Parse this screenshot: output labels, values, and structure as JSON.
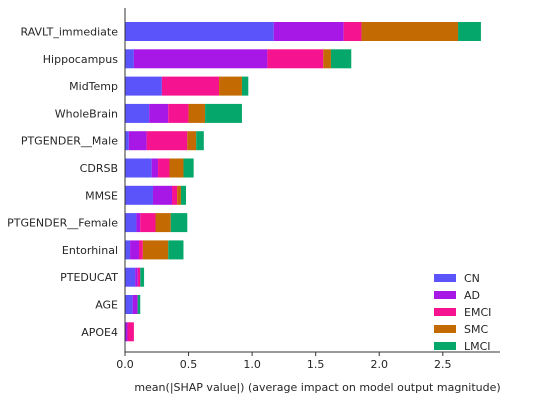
{
  "chart_data": {
    "type": "bar",
    "orientation": "horizontal",
    "stacked": true,
    "categories": [
      "RAVLT_immediate",
      "Hippocampus",
      "MidTemp",
      "WholeBrain",
      "PTGENDER__Male",
      "CDRSB",
      "MMSE",
      "PTGENDER__Female",
      "Entorhinal",
      "PTEDUCAT",
      "AGE",
      "APOE4"
    ],
    "series": [
      {
        "name": "CN",
        "color": "#5b54fa",
        "values": [
          1.17,
          0.07,
          0.29,
          0.19,
          0.03,
          0.21,
          0.22,
          0.09,
          0.04,
          0.08,
          0.06,
          0.0
        ]
      },
      {
        "name": "AD",
        "color": "#a718e6",
        "values": [
          0.55,
          1.05,
          0.0,
          0.15,
          0.14,
          0.05,
          0.15,
          0.03,
          0.07,
          0.02,
          0.04,
          0.02
        ]
      },
      {
        "name": "EMCI",
        "color": "#f5138f",
        "values": [
          0.14,
          0.44,
          0.45,
          0.16,
          0.32,
          0.09,
          0.04,
          0.12,
          0.03,
          0.02,
          0.0,
          0.05
        ]
      },
      {
        "name": "SMC",
        "color": "#c46a02",
        "values": [
          0.76,
          0.06,
          0.18,
          0.13,
          0.07,
          0.11,
          0.03,
          0.12,
          0.2,
          0.0,
          0.0,
          0.0
        ]
      },
      {
        "name": "LMCI",
        "color": "#06a76a",
        "values": [
          0.18,
          0.16,
          0.05,
          0.29,
          0.06,
          0.08,
          0.04,
          0.13,
          0.12,
          0.03,
          0.02,
          0.0
        ]
      }
    ],
    "xlabel": "mean(|SHAP value|) (average impact on model output magnitude)",
    "xlim": [
      0,
      2.95
    ],
    "xticks": [
      0.0,
      0.5,
      1.0,
      1.5,
      2.0,
      2.5
    ],
    "xtick_labels": [
      "0.0",
      "0.5",
      "1.0",
      "1.5",
      "2.0",
      "2.5"
    ],
    "legend": {
      "position": "lower-right",
      "entries": [
        "CN",
        "AD",
        "EMCI",
        "SMC",
        "LMCI"
      ]
    },
    "grid": false
  }
}
